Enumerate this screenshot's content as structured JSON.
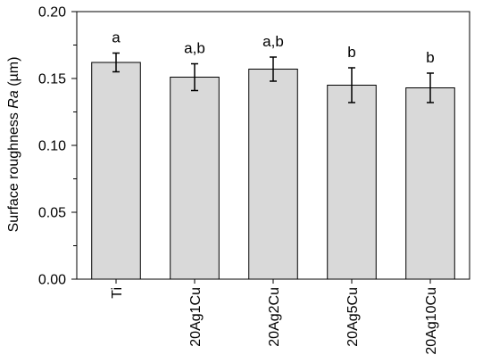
{
  "chart_data": {
    "type": "bar",
    "title": "",
    "xlabel": "",
    "ylabel_prefix": "Surface roughness ",
    "ylabel_italic": "Ra",
    "ylabel_suffix": " (µm)",
    "categories": [
      "Ti",
      "20Ag1Cu",
      "20Ag2Cu",
      "20Ag5Cu",
      "20Ag10Cu"
    ],
    "values": [
      0.162,
      0.151,
      0.157,
      0.145,
      0.143
    ],
    "error": [
      0.007,
      0.01,
      0.009,
      0.013,
      0.011
    ],
    "significance": [
      "a",
      "a,b",
      "a,b",
      "b",
      "b"
    ],
    "ylim": [
      0,
      0.2
    ],
    "yticks": [
      "0.00",
      "0.05",
      "0.10",
      "0.15",
      "0.20"
    ],
    "ytick_values": [
      0,
      0.05,
      0.1,
      0.15,
      0.2
    ],
    "grid": false,
    "legend": "none",
    "bar_color": "#d9d9d9",
    "edge_color": "#000000"
  }
}
